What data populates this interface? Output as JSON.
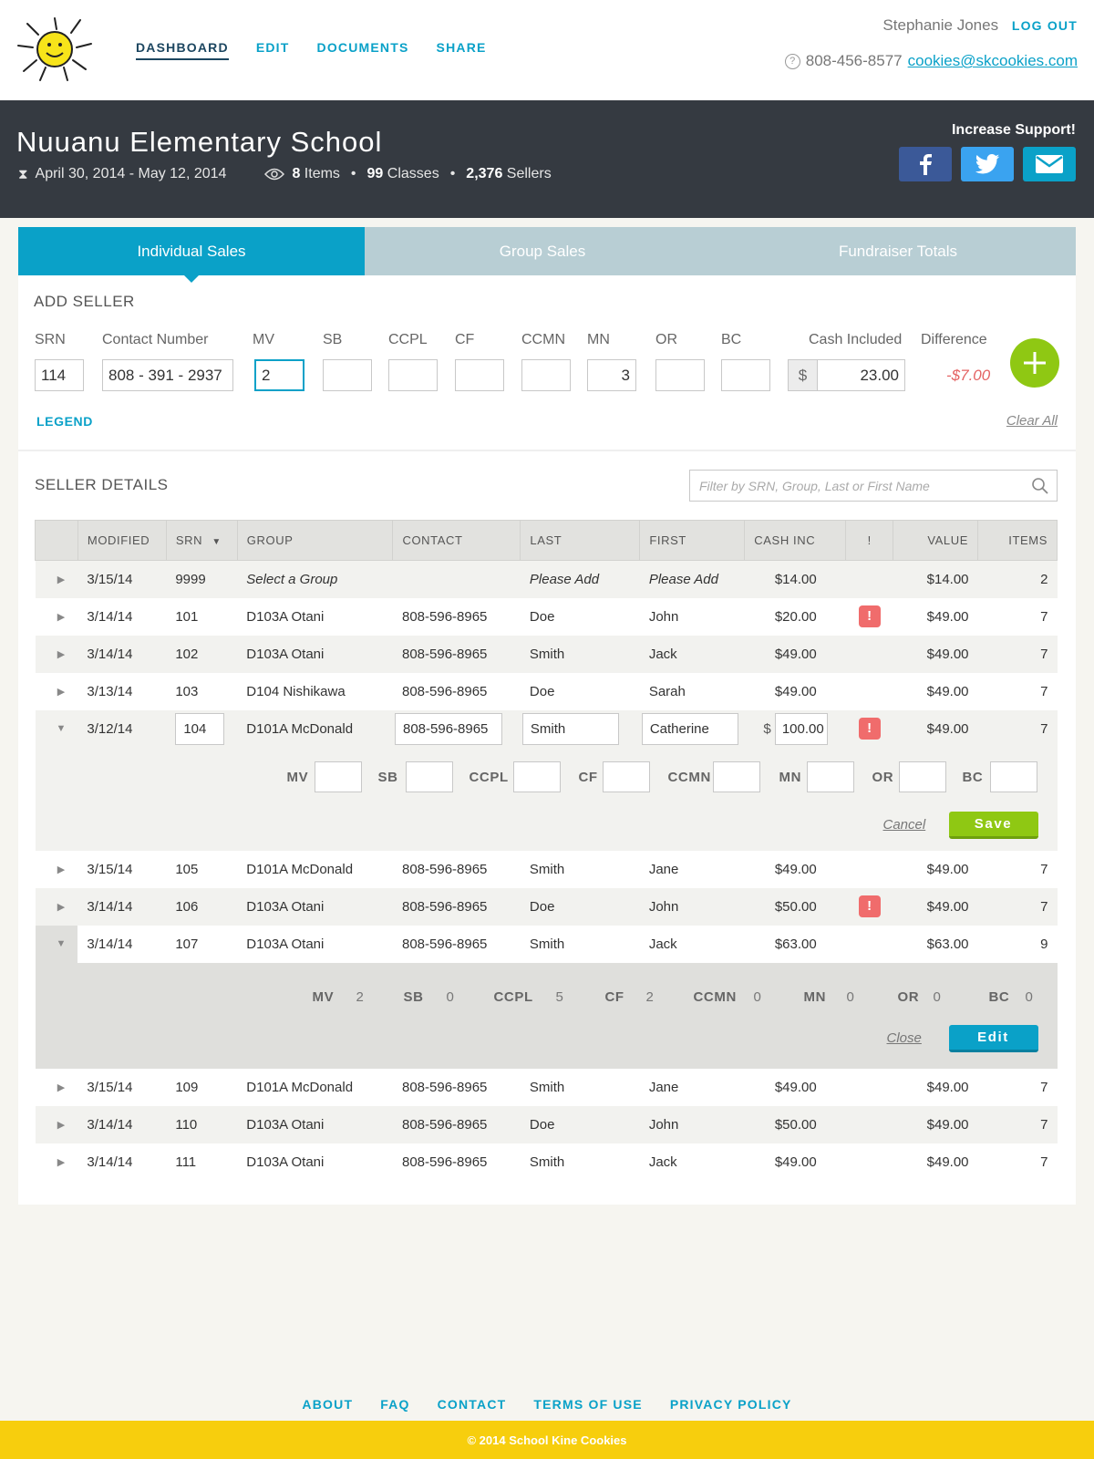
{
  "header": {
    "nav": [
      "DASHBOARD",
      "EDIT",
      "DOCUMENTS",
      "SHARE"
    ],
    "user_name": "Stephanie Jones",
    "logout_label": "LOG OUT",
    "phone": "808-456-8577",
    "email": "cookies@skcookies.com"
  },
  "banner": {
    "school_name": "Nuuanu Elementary School",
    "dates": "April 30, 2014 - May 12, 2014",
    "items_count": "8",
    "items_label": "Items",
    "classes_count": "99",
    "classes_label": "Classes",
    "sellers_count": "2,376",
    "sellers_label": "Sellers",
    "support_label": "Increase Support!"
  },
  "tabs": [
    "Individual Sales",
    "Group Sales",
    "Fundraiser Totals"
  ],
  "add_seller": {
    "title": "ADD SELLER",
    "labels": {
      "srn": "SRN",
      "contact": "Contact Number",
      "mv": "MV",
      "sb": "SB",
      "ccpl": "CCPL",
      "cf": "CF",
      "ccmn": "CCMN",
      "mn": "MN",
      "or": "OR",
      "bc": "BC",
      "cash": "Cash Included",
      "difference": "Difference"
    },
    "values": {
      "srn": "114",
      "contact": "808 - 391 - 2937",
      "mv": "2",
      "mn": "3",
      "cash": "23.00",
      "difference": "-$7.00"
    },
    "dollar": "$",
    "legend": "LEGEND",
    "clear_all": "Clear All"
  },
  "seller_details": {
    "title": "SELLER DETAILS",
    "search_placeholder": "Filter by SRN, Group, Last or First Name",
    "columns": [
      "MODIFIED",
      "SRN",
      "GROUP",
      "CONTACT",
      "LAST",
      "FIRST",
      "CASH INC",
      "!",
      "VALUE",
      "ITEMS"
    ],
    "rows_top": [
      {
        "modified": "3/15/14",
        "srn": "9999",
        "group": "Select a Group",
        "contact": "",
        "last": "Please Add",
        "first": "Please Add",
        "cash": "$14.00",
        "warn": "",
        "value": "$14.00",
        "items": "2"
      },
      {
        "modified": "3/14/14",
        "srn": "101",
        "group": "D103A Otani",
        "contact": "808-596-8965",
        "last": "Doe",
        "first": "John",
        "cash": "$20.00",
        "warn": "!",
        "value": "$49.00",
        "items": "7"
      },
      {
        "modified": "3/14/14",
        "srn": "102",
        "group": "D103A Otani",
        "contact": "808-596-8965",
        "last": "Smith",
        "first": "Jack",
        "cash": "$49.00",
        "warn": "",
        "value": "$49.00",
        "items": "7"
      },
      {
        "modified": "3/13/14",
        "srn": "103",
        "group": "D104 Nishikawa",
        "contact": "808-596-8965",
        "last": "Doe",
        "first": "Sarah",
        "cash": "$49.00",
        "warn": "",
        "value": "$49.00",
        "items": "7"
      }
    ],
    "edit_row": {
      "modified": "3/12/14",
      "srn": "104",
      "group": "D101A McDonald",
      "contact": "808-596-8965",
      "last": "Smith",
      "first": "Catherine",
      "dollar": "$",
      "cash": "100.00",
      "warn": "!",
      "value": "$49.00",
      "items": "7",
      "fields": [
        "MV",
        "SB",
        "CCPL",
        "CF",
        "CCMN",
        "MN",
        "OR",
        "BC"
      ],
      "cancel": "Cancel",
      "save": "Save"
    },
    "rows_mid": [
      {
        "modified": "3/15/14",
        "srn": "105",
        "group": "D101A McDonald",
        "contact": "808-596-8965",
        "last": "Smith",
        "first": "Jane",
        "cash": "$49.00",
        "warn": "",
        "value": "$49.00",
        "items": "7"
      },
      {
        "modified": "3/14/14",
        "srn": "106",
        "group": "D103A Otani",
        "contact": "808-596-8965",
        "last": "Doe",
        "first": "John",
        "cash": "$50.00",
        "warn": "!",
        "value": "$49.00",
        "items": "7"
      },
      {
        "modified": "3/14/14",
        "srn": "107",
        "group": "D103A Otani",
        "contact": "808-596-8965",
        "last": "Smith",
        "first": "Jack",
        "cash": "$63.00",
        "warn": "",
        "value": "$63.00",
        "items": "9"
      }
    ],
    "view_row": {
      "fields": [
        {
          "label": "MV",
          "value": "2"
        },
        {
          "label": "SB",
          "value": "0"
        },
        {
          "label": "CCPL",
          "value": "5"
        },
        {
          "label": "CF",
          "value": "2"
        },
        {
          "label": "CCMN",
          "value": "0"
        },
        {
          "label": "MN",
          "value": "0"
        },
        {
          "label": "OR",
          "value": "0"
        },
        {
          "label": "BC",
          "value": "0"
        }
      ],
      "close": "Close",
      "edit": "Edit"
    },
    "rows_bottom": [
      {
        "modified": "3/15/14",
        "srn": "109",
        "group": "D101A McDonald",
        "contact": "808-596-8965",
        "last": "Smith",
        "first": "Jane",
        "cash": "$49.00",
        "warn": "",
        "value": "$49.00",
        "items": "7"
      },
      {
        "modified": "3/14/14",
        "srn": "110",
        "group": "D103A Otani",
        "contact": "808-596-8965",
        "last": "Doe",
        "first": "John",
        "cash": "$50.00",
        "warn": "",
        "value": "$49.00",
        "items": "7"
      },
      {
        "modified": "3/14/14",
        "srn": "111",
        "group": "D103A Otani",
        "contact": "808-596-8965",
        "last": "Smith",
        "first": "Jack",
        "cash": "$49.00",
        "warn": "",
        "value": "$49.00",
        "items": "7"
      }
    ]
  },
  "footer": {
    "links": [
      "ABOUT",
      "FAQ",
      "CONTACT",
      "TERMS OF USE",
      "PRIVACY POLICY"
    ],
    "copyright": "© 2014 School Kine Cookies"
  },
  "colors": {
    "accent": "#0aa1c8",
    "banner": "#353a41",
    "add": "#8fc813",
    "alert": "#f06c6c",
    "footer": "#f7ce0d"
  }
}
